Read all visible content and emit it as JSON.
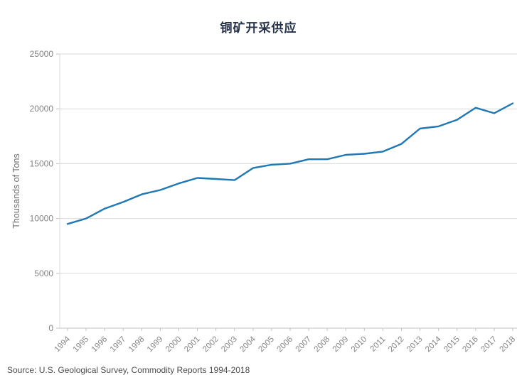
{
  "page": {
    "title": "铜矿开采供应",
    "source_note": "Source: U.S. Geological Survey, Commodity Reports 1994-2018"
  },
  "chart_data": {
    "type": "line",
    "title": "铜矿开采供应",
    "xlabel": "",
    "ylabel": "Thousands of Tons",
    "x": [
      1994,
      1995,
      1996,
      1997,
      1998,
      1999,
      2000,
      2001,
      2002,
      2003,
      2004,
      2005,
      2006,
      2007,
      2008,
      2009,
      2010,
      2011,
      2012,
      2013,
      2014,
      2015,
      2016,
      2017,
      2018
    ],
    "series": [
      {
        "name": "铜矿开采供应",
        "values": [
          9500,
          10000,
          10900,
          11500,
          12200,
          12600,
          13200,
          13700,
          13600,
          13500,
          14600,
          14900,
          15000,
          15400,
          15400,
          15800,
          15900,
          16100,
          16800,
          18200,
          18400,
          19000,
          20100,
          19600,
          20500
        ]
      }
    ],
    "ylim": [
      0,
      25000
    ],
    "yticks": [
      0,
      5000,
      10000,
      15000,
      20000,
      25000
    ],
    "grid": "horizontal",
    "legend_position": "none",
    "annotations": [],
    "source": "Source: U.S. Geological Survey, Commodity Reports 1994-2018"
  },
  "style": {
    "line_color": "#1f78b4",
    "grid_color": "#d9d9d9",
    "axis_color": "#c2c2c2",
    "tick_label_color": "#848484",
    "title_color": "#26324a",
    "ylabel_color": "#6f6f6f",
    "source_color": "#4d4d4d"
  }
}
